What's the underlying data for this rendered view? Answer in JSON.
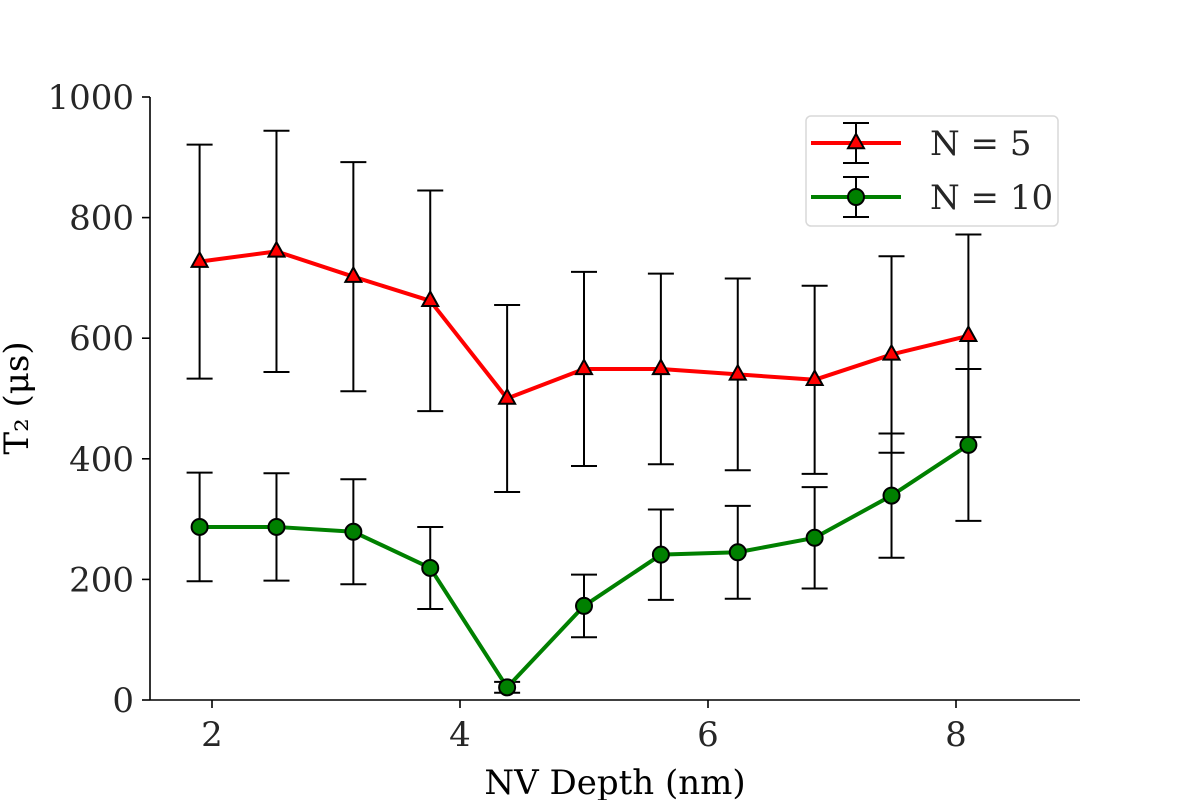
{
  "chart_data": {
    "type": "line",
    "xlabel": "NV Depth (nm)",
    "ylabel": "T₂ (μs)",
    "xlim": [
      1.5,
      9.0
    ],
    "ylim": [
      0,
      1000
    ],
    "xticks": [
      2,
      4,
      6,
      8
    ],
    "yticks": [
      0,
      200,
      400,
      600,
      800,
      1000
    ],
    "xtick_labels": [
      "2",
      "4",
      "6",
      "8"
    ],
    "ytick_labels": [
      "0",
      "200",
      "400",
      "600",
      "800",
      "1000"
    ],
    "legend_position": "top-right",
    "grid": false,
    "x": [
      1.9,
      2.52,
      3.14,
      3.76,
      4.38,
      5.0,
      5.62,
      6.24,
      6.86,
      7.48,
      8.1
    ],
    "series": [
      {
        "name": "N = 5",
        "color": "#ff0000",
        "marker": "triangle",
        "marker_color": "#ff0000",
        "values": [
          727,
          744,
          702,
          662,
          500,
          549,
          549,
          540,
          531,
          573,
          604
        ],
        "errors": [
          194,
          200,
          190,
          183,
          155,
          161,
          158,
          159,
          156,
          163,
          168
        ]
      },
      {
        "name": "N = 10",
        "color": "#008000",
        "marker": "circle",
        "marker_color": "#008000",
        "values": [
          287,
          287,
          279,
          219,
          21,
          156,
          241,
          245,
          269,
          339,
          423
        ],
        "errors": [
          90,
          89,
          87,
          68,
          9,
          52,
          75,
          77,
          84,
          103,
          126
        ]
      }
    ]
  }
}
